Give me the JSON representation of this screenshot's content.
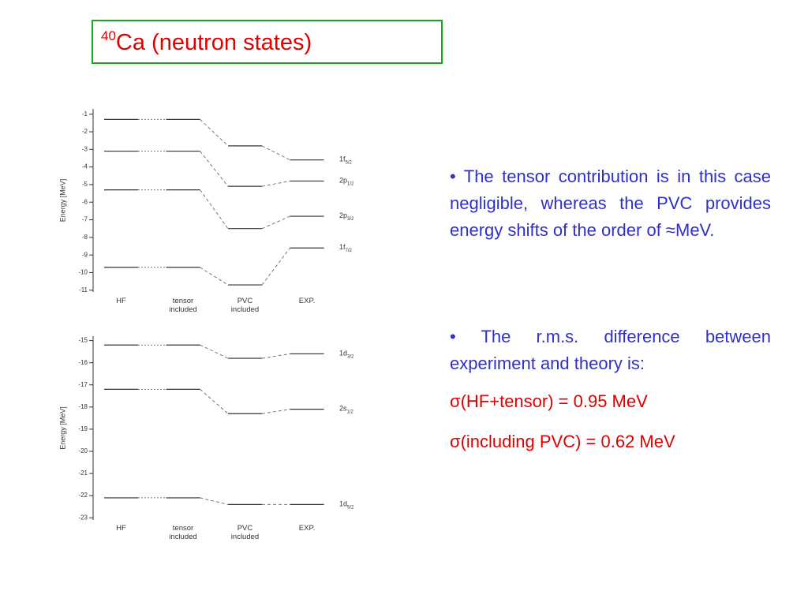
{
  "title_superscript": "40",
  "title": "Ca (neutron states)",
  "chart_data": [
    {
      "type": "level",
      "ylabel": "Energy [MeV]",
      "color": "#333333",
      "categories": [
        "HF",
        "tensor included",
        "PVC included",
        "EXP."
      ],
      "ylim": [
        -11.1,
        -0.7
      ],
      "yticks": [
        -1,
        -2,
        -3,
        -4,
        -5,
        -6,
        -7,
        -8,
        -9,
        -10,
        -11
      ],
      "series": [
        {
          "name": "1f",
          "subscript": "5/2",
          "values": [
            -1.3,
            -1.3,
            -2.8,
            -3.6
          ]
        },
        {
          "name": "2p",
          "subscript": "1/2",
          "values": [
            -3.1,
            -3.1,
            -5.1,
            -4.8
          ]
        },
        {
          "name": "2p",
          "subscript": "3/2",
          "values": [
            -5.3,
            -5.3,
            -7.5,
            -6.8
          ]
        },
        {
          "name": "1f",
          "subscript": "7/2",
          "values": [
            -9.7,
            -9.7,
            -10.7,
            -8.6
          ]
        }
      ]
    },
    {
      "type": "level",
      "ylabel": "Energy [MeV]",
      "color": "#333333",
      "categories": [
        "HF",
        "tensor included",
        "PVC included",
        "EXP."
      ],
      "ylim": [
        -23.1,
        -14.8
      ],
      "yticks": [
        -15,
        -16,
        -17,
        -18,
        -19,
        -20,
        -21,
        -22,
        -23
      ],
      "series": [
        {
          "name": "1d",
          "subscript": "3/2",
          "values": [
            -15.2,
            -15.2,
            -15.8,
            -15.6
          ]
        },
        {
          "name": "2s",
          "subscript": "1/2",
          "values": [
            -17.2,
            -17.2,
            -18.3,
            -18.1
          ]
        },
        {
          "name": "1d",
          "subscript": "5/2",
          "values": [
            -22.1,
            -22.1,
            -22.4,
            -22.4
          ]
        }
      ]
    }
  ],
  "bullets": [
    {
      "text": "• The tensor contribution is in this case negligible, whereas the PVC provides energy shifts of the order of ≈MeV."
    },
    {
      "text": "• The r.m.s. difference between experiment and theory is:",
      "lines": [
        "σ(HF+tensor) = 0.95 MeV",
        "σ(including PVC) = 0.62 MeV"
      ]
    }
  ]
}
